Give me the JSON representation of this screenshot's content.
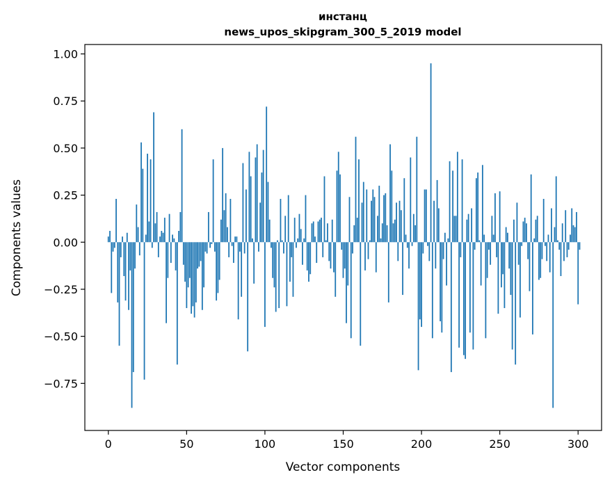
{
  "chart_data": {
    "type": "bar",
    "title_line1": "инстанц",
    "title_line2": "news_upos_skipgram_300_5_2019 model",
    "xlabel": "Vector components",
    "ylabel": "Components values",
    "xlim": [
      -15,
      315
    ],
    "ylim": [
      -1.0,
      1.05
    ],
    "x_ticks": [
      0,
      50,
      100,
      150,
      200,
      250,
      300
    ],
    "x_tick_labels": [
      "0",
      "50",
      "100",
      "150",
      "200",
      "250",
      "300"
    ],
    "y_ticks": [
      1.0,
      0.75,
      0.5,
      0.25,
      0.0,
      -0.25,
      -0.5,
      -0.75
    ],
    "y_tick_labels": [
      "1.00",
      "0.75",
      "0.50",
      "0.25",
      "0.00",
      "−0.25",
      "−0.50",
      "−0.75"
    ],
    "bar_color": "#1f77b4",
    "values": [
      0.03,
      0.06,
      -0.27,
      -0.05,
      -0.03,
      0.23,
      -0.32,
      -0.55,
      -0.08,
      0.03,
      -0.18,
      -0.31,
      0.05,
      -0.36,
      -0.15,
      -0.88,
      -0.69,
      -0.14,
      0.2,
      0.08,
      -0.07,
      0.53,
      0.39,
      -0.73,
      0.04,
      0.47,
      0.11,
      0.44,
      -0.03,
      0.69,
      0.1,
      0.16,
      -0.08,
      0.03,
      0.06,
      0.05,
      0.13,
      -0.43,
      -0.19,
      0.15,
      -0.11,
      0.04,
      0.02,
      -0.15,
      -0.65,
      0.06,
      0.16,
      0.6,
      -0.12,
      -0.21,
      -0.35,
      -0.24,
      -0.19,
      -0.38,
      -0.34,
      -0.4,
      -0.32,
      -0.14,
      -0.13,
      -0.1,
      -0.36,
      -0.24,
      -0.05,
      -0.06,
      0.16,
      -0.03,
      -0.01,
      0.44,
      -0.05,
      -0.31,
      -0.27,
      -0.2,
      0.12,
      0.5,
      0.17,
      0.26,
      0.08,
      -0.08,
      0.23,
      -0.02,
      -0.11,
      0.03,
      0.03,
      -0.41,
      -0.05,
      -0.29,
      0.42,
      -0.06,
      0.28,
      -0.58,
      0.48,
      0.35,
      0.02,
      -0.22,
      0.45,
      0.52,
      -0.05,
      0.21,
      0.37,
      0.49,
      -0.45,
      0.72,
      0.32,
      0.12,
      -0.03,
      -0.19,
      -0.24,
      -0.37,
      0.01,
      -0.35,
      0.23,
      0.01,
      -0.06,
      0.14,
      -0.34,
      0.25,
      -0.21,
      -0.08,
      -0.29,
      0.13,
      -0.03,
      0.02,
      0.15,
      0.07,
      -0.12,
      0.02,
      0.25,
      -0.15,
      -0.21,
      -0.17,
      0.1,
      0.11,
      0.03,
      -0.11,
      0.11,
      0.12,
      0.13,
      -0.08,
      0.35,
      0.01,
      0.1,
      -0.1,
      -0.14,
      0.12,
      -0.16,
      -0.29,
      0.38,
      0.48,
      0.36,
      -0.04,
      -0.19,
      -0.14,
      -0.43,
      -0.23,
      0.24,
      -0.51,
      -0.06,
      0.09,
      0.56,
      0.13,
      0.44,
      -0.55,
      0.21,
      0.32,
      -0.15,
      0.28,
      -0.09,
      0.01,
      0.22,
      0.28,
      0.24,
      -0.16,
      0.14,
      0.3,
      0.02,
      0.1,
      0.25,
      0.26,
      0.09,
      -0.32,
      0.52,
      0.38,
      0.1,
      0.12,
      0.21,
      -0.1,
      0.22,
      0.17,
      -0.28,
      0.34,
      0.04,
      -0.03,
      -0.14,
      0.45,
      -0.02,
      0.15,
      0.09,
      0.56,
      -0.68,
      -0.41,
      -0.45,
      -0.06,
      0.28,
      0.28,
      -0.02,
      -0.1,
      0.95,
      -0.51,
      0.22,
      -0.14,
      0.33,
      0.18,
      -0.42,
      -0.48,
      -0.09,
      0.05,
      -0.23,
      0.02,
      0.43,
      -0.69,
      0.38,
      0.14,
      0.14,
      0.48,
      -0.56,
      -0.08,
      0.44,
      -0.6,
      -0.62,
      0.12,
      0.15,
      -0.48,
      0.18,
      -0.57,
      -0.04,
      0.34,
      0.37,
      0.01,
      -0.23,
      0.41,
      0.04,
      -0.51,
      -0.19,
      -0.04,
      -0.12,
      0.14,
      0.04,
      0.26,
      -0.08,
      -0.38,
      0.27,
      -0.24,
      -0.17,
      -0.35,
      0.08,
      0.05,
      -0.14,
      -0.28,
      -0.57,
      0.12,
      -0.65,
      0.21,
      -0.12,
      -0.4,
      -0.02,
      0.11,
      0.13,
      0.1,
      -0.09,
      -0.26,
      0.36,
      -0.49,
      0.02,
      0.12,
      0.14,
      -0.2,
      -0.19,
      -0.09,
      0.23,
      -0.02,
      -0.1,
      0.04,
      -0.16,
      0.18,
      -0.88,
      0.08,
      0.35,
      0.01,
      -0.04,
      -0.18,
      0.1,
      -0.1,
      0.17,
      -0.08,
      -0.04,
      0.04,
      0.18,
      0.09,
      0.08,
      0.16,
      -0.33,
      -0.04
    ]
  }
}
